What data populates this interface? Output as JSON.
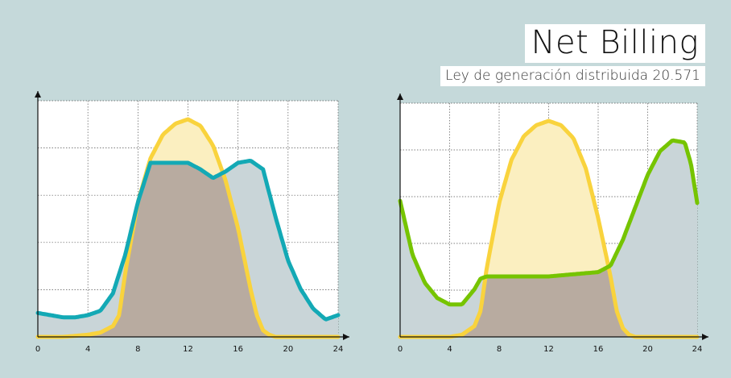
{
  "header": {
    "title": "Net Billing",
    "subtitle": "Ley de generación distribuida 20.571"
  },
  "colors": {
    "background": "#c5d9da",
    "solar": "#f9d33d",
    "solar_fill": "#fbefc0",
    "consumption_left": "#13a9b5",
    "consumption_right": "#76c400",
    "consumption_fill": "#c9d5d8",
    "overlap_fill": "#b8aba0"
  },
  "chart_data": [
    {
      "type": "area",
      "xlabel": "",
      "ylabel": "",
      "xlim": [
        0,
        24
      ],
      "ylim": [
        0,
        1
      ],
      "x_ticks": [
        "0",
        "4",
        "8",
        "12",
        "16",
        "20",
        "24"
      ],
      "grid": true,
      "series": [
        {
          "x": [
            0,
            2,
            4,
            5,
            6,
            6.5,
            7,
            8,
            9,
            10,
            11,
            12,
            13,
            14,
            15,
            16,
            17,
            17.5,
            18,
            18.5,
            19,
            20,
            24
          ],
          "values": [
            0,
            0,
            0.01,
            0.02,
            0.05,
            0.1,
            0.3,
            0.62,
            0.82,
            0.93,
            0.98,
            1.0,
            0.97,
            0.88,
            0.72,
            0.5,
            0.22,
            0.1,
            0.03,
            0.01,
            0,
            0,
            0
          ]
        },
        {
          "x": [
            0,
            1,
            2,
            3,
            4,
            5,
            6,
            7,
            8,
            9,
            10,
            11,
            12,
            13,
            14,
            15,
            16,
            17,
            18,
            19,
            20,
            21,
            22,
            23,
            24
          ],
          "values": [
            0.11,
            0.1,
            0.09,
            0.09,
            0.1,
            0.12,
            0.2,
            0.38,
            0.62,
            0.8,
            0.8,
            0.8,
            0.8,
            0.77,
            0.73,
            0.76,
            0.8,
            0.81,
            0.77,
            0.55,
            0.35,
            0.22,
            0.13,
            0.08,
            0.1
          ]
        }
      ]
    },
    {
      "type": "area",
      "xlabel": "",
      "ylabel": "",
      "xlim": [
        0,
        24
      ],
      "ylim": [
        0,
        1
      ],
      "x_ticks": [
        "0",
        "4",
        "8",
        "12",
        "16",
        "20",
        "24"
      ],
      "grid": true,
      "series": [
        {
          "x": [
            0,
            2,
            4,
            5,
            6,
            6.5,
            7,
            8,
            9,
            10,
            11,
            12,
            13,
            14,
            15,
            16,
            17,
            17.5,
            18,
            18.5,
            19,
            20,
            24
          ],
          "values": [
            0,
            0,
            0,
            0.01,
            0.05,
            0.12,
            0.32,
            0.62,
            0.82,
            0.93,
            0.98,
            1.0,
            0.98,
            0.92,
            0.78,
            0.55,
            0.28,
            0.12,
            0.04,
            0.01,
            0,
            0,
            0
          ]
        },
        {
          "x": [
            0,
            1,
            2,
            3,
            4,
            5,
            6,
            6.5,
            7,
            8,
            10,
            12,
            14,
            16,
            17,
            18,
            19,
            20,
            21,
            22,
            23,
            23.5,
            24
          ],
          "values": [
            0.63,
            0.38,
            0.25,
            0.18,
            0.15,
            0.15,
            0.22,
            0.27,
            0.28,
            0.28,
            0.28,
            0.28,
            0.29,
            0.3,
            0.33,
            0.45,
            0.6,
            0.75,
            0.86,
            0.91,
            0.9,
            0.8,
            0.62
          ]
        }
      ]
    }
  ]
}
